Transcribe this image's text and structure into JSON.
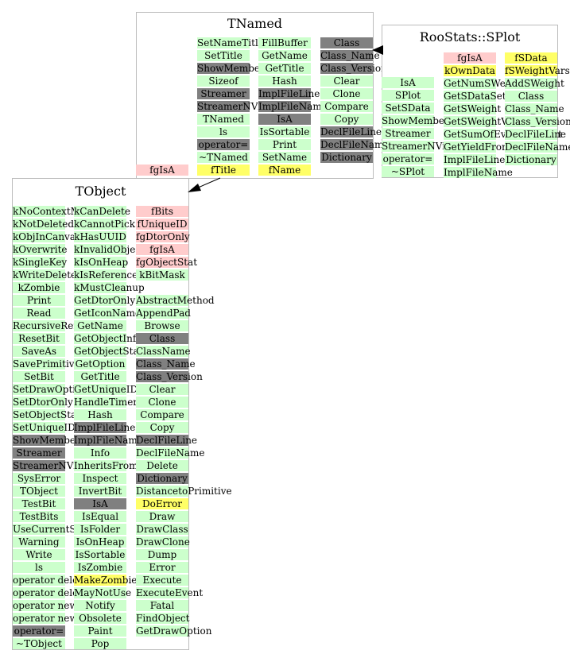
{
  "colors": {
    "method": "#ccffcc",
    "private": "#808080",
    "member": "#ffcccc",
    "data": "#ffff66",
    "frame": "#bcbcbc"
  },
  "classes": {
    "tnamed": {
      "title": "TNamed",
      "col1": [
        {
          "label": "SetNameTitle",
          "kind": "method"
        },
        {
          "label": "SetTitle",
          "kind": "method"
        },
        {
          "label": "ShowMembers",
          "kind": "private"
        },
        {
          "label": "Sizeof",
          "kind": "method"
        },
        {
          "label": "Streamer",
          "kind": "private"
        },
        {
          "label": "StreamerNVirtual",
          "kind": "private"
        },
        {
          "label": "TNamed",
          "kind": "method"
        },
        {
          "label": "ls",
          "kind": "method"
        },
        {
          "label": "operator=",
          "kind": "private"
        },
        {
          "label": "~TNamed",
          "kind": "method"
        },
        {
          "label": "fTitle",
          "kind": "data"
        }
      ],
      "col2": [
        {
          "label": "FillBuffer",
          "kind": "method"
        },
        {
          "label": "GetName",
          "kind": "method"
        },
        {
          "label": "GetTitle",
          "kind": "method"
        },
        {
          "label": "Hash",
          "kind": "method"
        },
        {
          "label": "ImplFileLine",
          "kind": "private"
        },
        {
          "label": "ImplFileName",
          "kind": "private"
        },
        {
          "label": "IsA",
          "kind": "private"
        },
        {
          "label": "IsSortable",
          "kind": "method"
        },
        {
          "label": "Print",
          "kind": "method"
        },
        {
          "label": "SetName",
          "kind": "method"
        },
        {
          "label": "fName",
          "kind": "data"
        }
      ],
      "col3": [
        {
          "label": "Class",
          "kind": "private"
        },
        {
          "label": "Class_Name",
          "kind": "private"
        },
        {
          "label": "Class_Version",
          "kind": "private"
        },
        {
          "label": "Clear",
          "kind": "method"
        },
        {
          "label": "Clone",
          "kind": "method"
        },
        {
          "label": "Compare",
          "kind": "method"
        },
        {
          "label": "Copy",
          "kind": "method"
        },
        {
          "label": "DeclFileLine",
          "kind": "private"
        },
        {
          "label": "DeclFileName",
          "kind": "private"
        },
        {
          "label": "Dictionary",
          "kind": "private"
        }
      ],
      "extra": {
        "label": "fgIsA",
        "kind": "member"
      }
    },
    "splot": {
      "title": "RooStats::SPlot",
      "col1": [
        {
          "label": "IsA",
          "kind": "method"
        },
        {
          "label": "SPlot",
          "kind": "method"
        },
        {
          "label": "SetSData",
          "kind": "method"
        },
        {
          "label": "ShowMembers",
          "kind": "method"
        },
        {
          "label": "Streamer",
          "kind": "method"
        },
        {
          "label": "StreamerNVirtual",
          "kind": "method"
        },
        {
          "label": "operator=",
          "kind": "method"
        },
        {
          "label": "~SPlot",
          "kind": "method"
        }
      ],
      "col2": [
        {
          "label": "fgIsA",
          "kind": "member"
        },
        {
          "label": "kOwnData",
          "kind": "data"
        },
        {
          "label": "GetNumSWeightVars",
          "kind": "method"
        },
        {
          "label": "GetSDataSet",
          "kind": "method"
        },
        {
          "label": "GetSWeight",
          "kind": "method"
        },
        {
          "label": "GetSWeightVars",
          "kind": "method"
        },
        {
          "label": "GetSumOfEventSWeight",
          "kind": "method"
        },
        {
          "label": "GetYieldFromSWeight",
          "kind": "method"
        },
        {
          "label": "ImplFileLine",
          "kind": "method"
        },
        {
          "label": "ImplFileName",
          "kind": "method"
        }
      ],
      "col3": [
        {
          "label": "fSData",
          "kind": "data"
        },
        {
          "label": "fSWeightVars",
          "kind": "data"
        },
        {
          "label": "AddSWeight",
          "kind": "method"
        },
        {
          "label": "Class",
          "kind": "method"
        },
        {
          "label": "Class_Name",
          "kind": "method"
        },
        {
          "label": "Class_Version",
          "kind": "method"
        },
        {
          "label": "DeclFileLine",
          "kind": "method"
        },
        {
          "label": "DeclFileName",
          "kind": "method"
        },
        {
          "label": "Dictionary",
          "kind": "method"
        }
      ]
    },
    "tobject": {
      "title": "TObject",
      "col1": [
        {
          "label": "kNoContextMenu",
          "kind": "method"
        },
        {
          "label": "kNotDeleted",
          "kind": "method"
        },
        {
          "label": "kObjInCanvas",
          "kind": "method"
        },
        {
          "label": "kOverwrite",
          "kind": "method"
        },
        {
          "label": "kSingleKey",
          "kind": "method"
        },
        {
          "label": "kWriteDelete",
          "kind": "method"
        },
        {
          "label": "kZombie",
          "kind": "method"
        },
        {
          "label": "Print",
          "kind": "method"
        },
        {
          "label": "Read",
          "kind": "method"
        },
        {
          "label": "RecursiveRemove",
          "kind": "method"
        },
        {
          "label": "ResetBit",
          "kind": "method"
        },
        {
          "label": "SaveAs",
          "kind": "method"
        },
        {
          "label": "SavePrimitive",
          "kind": "method"
        },
        {
          "label": "SetBit",
          "kind": "method"
        },
        {
          "label": "SetDrawOption",
          "kind": "method"
        },
        {
          "label": "SetDtorOnly",
          "kind": "method"
        },
        {
          "label": "SetObjectStat",
          "kind": "method"
        },
        {
          "label": "SetUniqueID",
          "kind": "method"
        },
        {
          "label": "ShowMembers",
          "kind": "private"
        },
        {
          "label": "Streamer",
          "kind": "private"
        },
        {
          "label": "StreamerNVirtual",
          "kind": "private"
        },
        {
          "label": "SysError",
          "kind": "method"
        },
        {
          "label": "TObject",
          "kind": "method"
        },
        {
          "label": "TestBit",
          "kind": "method"
        },
        {
          "label": "TestBits",
          "kind": "method"
        },
        {
          "label": "UseCurrentStyle",
          "kind": "method"
        },
        {
          "label": "Warning",
          "kind": "method"
        },
        {
          "label": "Write",
          "kind": "method"
        },
        {
          "label": "ls",
          "kind": "method"
        },
        {
          "label": "operator delete",
          "kind": "method"
        },
        {
          "label": "operator delete[]",
          "kind": "method"
        },
        {
          "label": "operator new",
          "kind": "method"
        },
        {
          "label": "operator new[]",
          "kind": "method"
        },
        {
          "label": "operator=",
          "kind": "private"
        },
        {
          "label": "~TObject",
          "kind": "method"
        }
      ],
      "col2": [
        {
          "label": "kCanDelete",
          "kind": "method"
        },
        {
          "label": "kCannotPick",
          "kind": "method"
        },
        {
          "label": "kHasUUID",
          "kind": "method"
        },
        {
          "label": "kInvalidObject",
          "kind": "method"
        },
        {
          "label": "kIsOnHeap",
          "kind": "method"
        },
        {
          "label": "kIsReferenced",
          "kind": "method"
        },
        {
          "label": "kMustCleanup",
          "kind": "method"
        },
        {
          "label": "GetDtorOnly",
          "kind": "method"
        },
        {
          "label": "GetIconName",
          "kind": "method"
        },
        {
          "label": "GetName",
          "kind": "method"
        },
        {
          "label": "GetObjectInfo",
          "kind": "method"
        },
        {
          "label": "GetObjectStat",
          "kind": "method"
        },
        {
          "label": "GetOption",
          "kind": "method"
        },
        {
          "label": "GetTitle",
          "kind": "method"
        },
        {
          "label": "GetUniqueID",
          "kind": "method"
        },
        {
          "label": "HandleTimer",
          "kind": "method"
        },
        {
          "label": "Hash",
          "kind": "method"
        },
        {
          "label": "ImplFileLine",
          "kind": "private"
        },
        {
          "label": "ImplFileName",
          "kind": "private"
        },
        {
          "label": "Info",
          "kind": "method"
        },
        {
          "label": "InheritsFrom",
          "kind": "method"
        },
        {
          "label": "Inspect",
          "kind": "method"
        },
        {
          "label": "InvertBit",
          "kind": "method"
        },
        {
          "label": "IsA",
          "kind": "private"
        },
        {
          "label": "IsEqual",
          "kind": "method"
        },
        {
          "label": "IsFolder",
          "kind": "method"
        },
        {
          "label": "IsOnHeap",
          "kind": "method"
        },
        {
          "label": "IsSortable",
          "kind": "method"
        },
        {
          "label": "IsZombie",
          "kind": "method"
        },
        {
          "label": "MakeZombie",
          "kind": "protected"
        },
        {
          "label": "MayNotUse",
          "kind": "method"
        },
        {
          "label": "Notify",
          "kind": "method"
        },
        {
          "label": "Obsolete",
          "kind": "method"
        },
        {
          "label": "Paint",
          "kind": "method"
        },
        {
          "label": "Pop",
          "kind": "method"
        }
      ],
      "col3": [
        {
          "label": "fBits",
          "kind": "member"
        },
        {
          "label": "fUniqueID",
          "kind": "member"
        },
        {
          "label": "fgDtorOnly",
          "kind": "member"
        },
        {
          "label": "fgIsA",
          "kind": "member"
        },
        {
          "label": "fgObjectStat",
          "kind": "member"
        },
        {
          "label": "kBitMask",
          "kind": "method"
        },
        {
          "label": "",
          "kind": "none"
        },
        {
          "label": "AbstractMethod",
          "kind": "method"
        },
        {
          "label": "AppendPad",
          "kind": "method"
        },
        {
          "label": "Browse",
          "kind": "method"
        },
        {
          "label": "Class",
          "kind": "private"
        },
        {
          "label": "ClassName",
          "kind": "method"
        },
        {
          "label": "Class_Name",
          "kind": "private"
        },
        {
          "label": "Class_Version",
          "kind": "private"
        },
        {
          "label": "Clear",
          "kind": "method"
        },
        {
          "label": "Clone",
          "kind": "method"
        },
        {
          "label": "Compare",
          "kind": "method"
        },
        {
          "label": "Copy",
          "kind": "method"
        },
        {
          "label": "DeclFileLine",
          "kind": "private"
        },
        {
          "label": "DeclFileName",
          "kind": "method"
        },
        {
          "label": "Delete",
          "kind": "method"
        },
        {
          "label": "Dictionary",
          "kind": "private"
        },
        {
          "label": "DistancetoPrimitive",
          "kind": "method"
        },
        {
          "label": "DoError",
          "kind": "protected"
        },
        {
          "label": "Draw",
          "kind": "method"
        },
        {
          "label": "DrawClass",
          "kind": "method"
        },
        {
          "label": "DrawClone",
          "kind": "method"
        },
        {
          "label": "Dump",
          "kind": "method"
        },
        {
          "label": "Error",
          "kind": "method"
        },
        {
          "label": "Execute",
          "kind": "method"
        },
        {
          "label": "ExecuteEvent",
          "kind": "method"
        },
        {
          "label": "Fatal",
          "kind": "method"
        },
        {
          "label": "FindObject",
          "kind": "method"
        },
        {
          "label": "GetDrawOption",
          "kind": "method"
        }
      ]
    }
  }
}
